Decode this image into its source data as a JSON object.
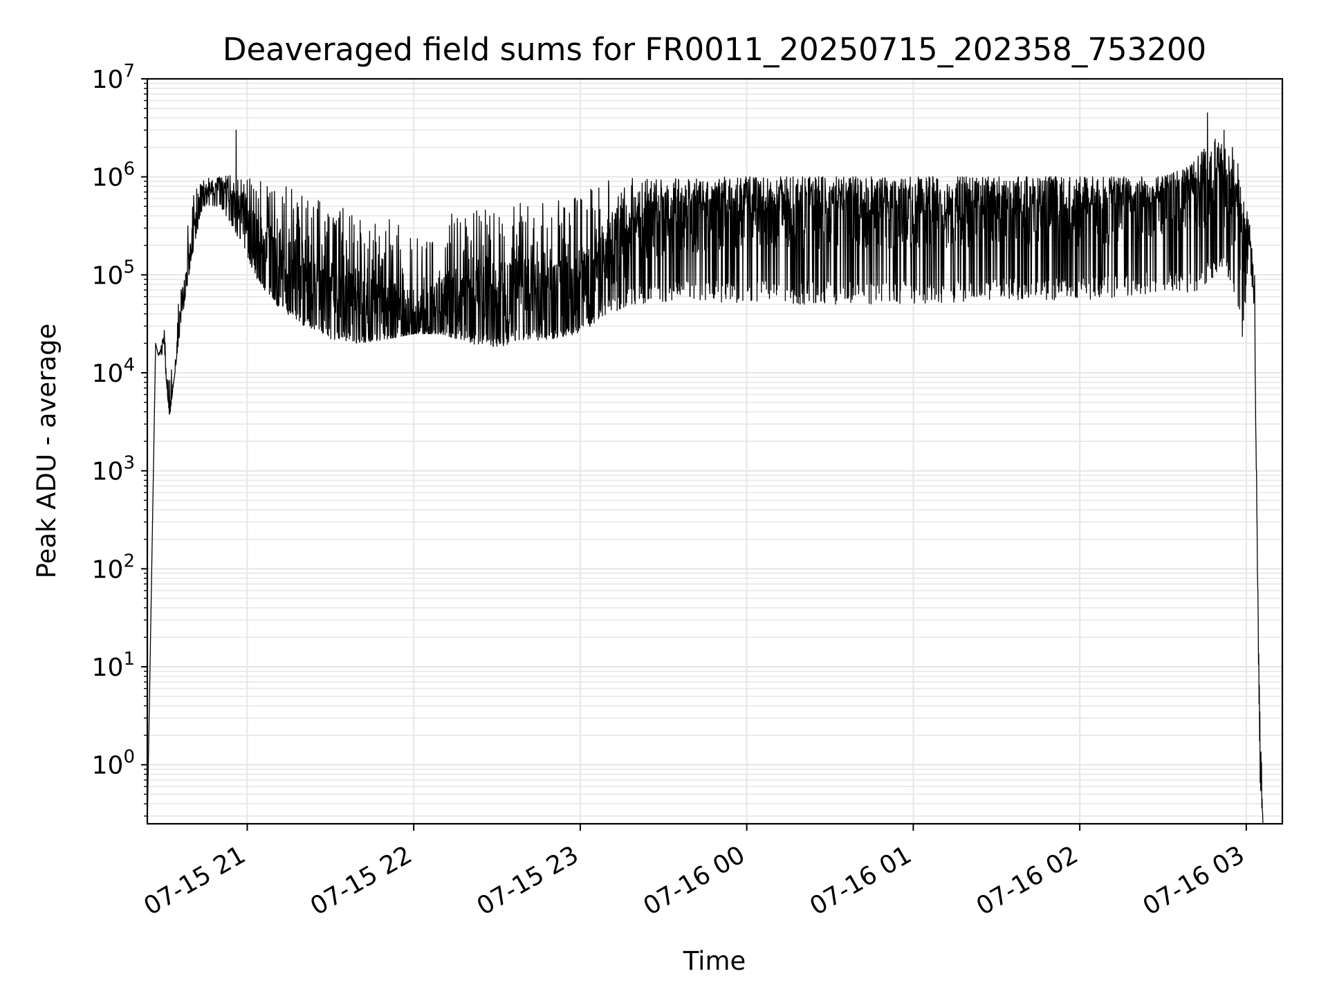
{
  "chart_data": {
    "type": "line",
    "title": "Deaveraged field sums for FR0011_20250715_202358_753200",
    "xlabel": "Time",
    "ylabel": "Peak ADU - average",
    "yscale": "log",
    "ylim": [
      0.25,
      10000000
    ],
    "xlim": [
      "2025-07-15 20:24",
      "2025-07-16 03:13"
    ],
    "grid": true,
    "line_color": "#000000",
    "grid_color": "#e6e6e6",
    "x_ticks": [
      {
        "value": "2025-07-15 21:00",
        "label": "07-15 21"
      },
      {
        "value": "2025-07-15 22:00",
        "label": "07-15 22"
      },
      {
        "value": "2025-07-15 23:00",
        "label": "07-15 23"
      },
      {
        "value": "2025-07-16 00:00",
        "label": "07-16 00"
      },
      {
        "value": "2025-07-16 01:00",
        "label": "07-16 01"
      },
      {
        "value": "2025-07-16 02:00",
        "label": "07-16 02"
      },
      {
        "value": "2025-07-16 03:00",
        "label": "07-16 03"
      }
    ],
    "y_ticks": [
      {
        "value": 1,
        "base": "10",
        "exp": "0"
      },
      {
        "value": 10,
        "base": "10",
        "exp": "1"
      },
      {
        "value": 100,
        "base": "10",
        "exp": "2"
      },
      {
        "value": 1000,
        "base": "10",
        "exp": "3"
      },
      {
        "value": 10000,
        "base": "10",
        "exp": "4"
      },
      {
        "value": 100000,
        "base": "10",
        "exp": "5"
      },
      {
        "value": 1000000,
        "base": "10",
        "exp": "6"
      },
      {
        "value": 10000000,
        "base": "10",
        "exp": "7"
      }
    ],
    "series": [
      {
        "x": [
          "2025-07-15 20:24",
          "2025-07-15 20:27",
          "2025-07-15 20:28",
          "2025-07-15 20:30",
          "2025-07-15 20:32",
          "2025-07-15 20:36",
          "2025-07-15 20:40",
          "2025-07-15 20:44",
          "2025-07-15 20:48",
          "2025-07-15 20:50",
          "2025-07-15 20:55",
          "2025-07-15 21:00",
          "2025-07-15 21:05",
          "2025-07-15 21:10",
          "2025-07-15 21:20",
          "2025-07-15 21:30",
          "2025-07-15 21:40",
          "2025-07-15 21:50",
          "2025-07-15 22:00",
          "2025-07-15 22:10",
          "2025-07-15 22:20",
          "2025-07-15 22:30",
          "2025-07-15 22:40",
          "2025-07-15 22:50",
          "2025-07-15 23:00",
          "2025-07-15 23:10",
          "2025-07-15 23:20",
          "2025-07-15 23:40",
          "2025-07-16 00:00",
          "2025-07-16 00:30",
          "2025-07-16 01:00",
          "2025-07-16 01:30",
          "2025-07-16 02:00",
          "2025-07-16 02:20",
          "2025-07-16 02:30",
          "2025-07-16 02:40",
          "2025-07-16 02:50",
          "2025-07-16 02:55",
          "2025-07-16 02:59",
          "2025-07-16 03:01",
          "2025-07-16 03:03",
          "2025-07-16 03:04",
          "2025-07-16 03:05",
          "2025-07-16 03:06"
        ],
        "y": [
          0.25,
          20000,
          15000,
          20000,
          3500,
          40000,
          200000,
          800000,
          650000,
          900000,
          500000,
          400000,
          150000,
          120000,
          80000,
          60000,
          45000,
          40000,
          35000,
          40000,
          45000,
          50000,
          55000,
          60000,
          70000,
          150000,
          300000,
          400000,
          450000,
          450000,
          450000,
          450000,
          450000,
          500000,
          550000,
          700000,
          900000,
          500000,
          200000,
          300000,
          50000,
          100,
          1,
          0.25
        ],
        "y_high": [
          0.25,
          20000,
          15000,
          30000,
          8000,
          100000,
          600000,
          1000000,
          950000,
          1000000,
          1100000,
          1100000,
          1000000,
          900000,
          700000,
          550000,
          450000,
          380000,
          360000,
          400000,
          450000,
          500000,
          550000,
          600000,
          650000,
          950000,
          1000000,
          1000000,
          1000000,
          1000000,
          1000000,
          1000000,
          1000000,
          1000000,
          1000000,
          1300000,
          3000000,
          2000000,
          1000000,
          400000,
          100000,
          150,
          5,
          0.25
        ],
        "y_low": [
          0.25,
          20000,
          15000,
          15000,
          3500,
          30000,
          150000,
          500000,
          500000,
          500000,
          300000,
          150000,
          70000,
          50000,
          30000,
          22000,
          20000,
          22000,
          25000,
          25000,
          20000,
          18000,
          20000,
          22000,
          25000,
          40000,
          50000,
          55000,
          50000,
          50000,
          50000,
          55000,
          55000,
          60000,
          70000,
          60000,
          100000,
          80000,
          20000,
          200000,
          30000,
          70,
          0.6,
          0.25
        ],
        "spikes": [
          {
            "x": "2025-07-15 20:56",
            "y": 3000000
          },
          {
            "x": "2025-07-16 02:46",
            "y": 4500000
          },
          {
            "x": "2025-07-16 02:52",
            "y": 3000000
          },
          {
            "x": "2025-07-16 02:55",
            "y": 2000000
          }
        ]
      }
    ]
  }
}
